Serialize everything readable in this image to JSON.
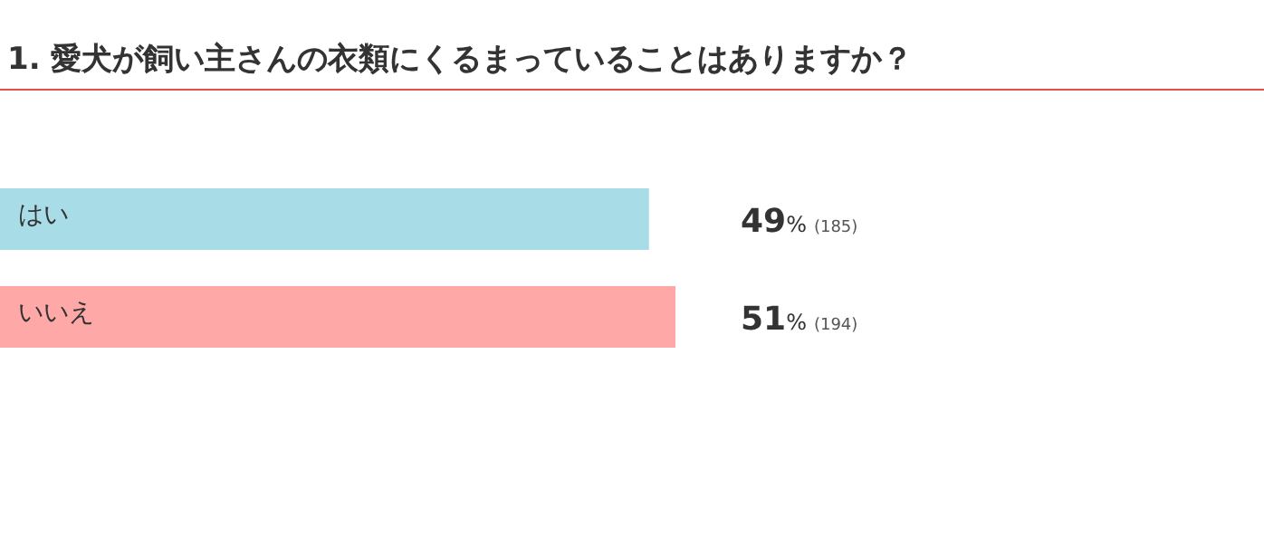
{
  "chart_data": {
    "type": "bar",
    "orientation": "horizontal",
    "title": "1. 愛犬が飼い主さんの衣類にくるまっていることはありますか？",
    "categories": [
      "はい",
      "いいえ"
    ],
    "values": [
      49,
      51
    ],
    "colors": [
      "#a8dde8",
      "#ffa8a8"
    ],
    "value_labels": [
      "49% (185)",
      "51% (194)"
    ]
  }
}
